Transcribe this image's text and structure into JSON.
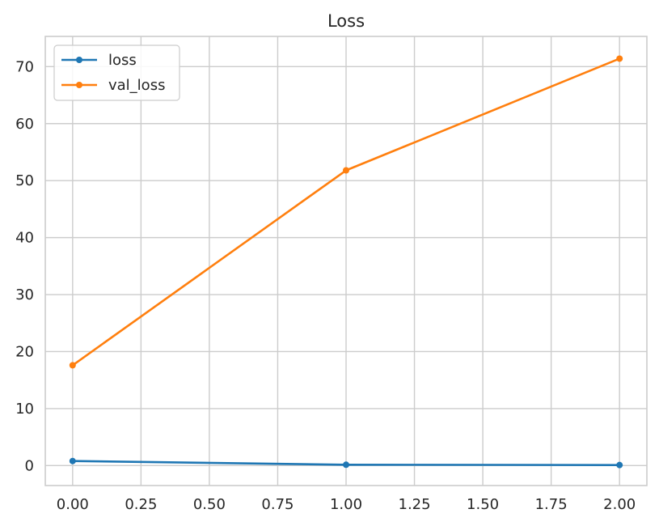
{
  "chart_data": {
    "type": "line",
    "title": "Loss",
    "xlabel": "",
    "ylabel": "",
    "x": [
      0,
      1,
      2
    ],
    "series": [
      {
        "name": "loss",
        "values": [
          0.8,
          0.15,
          0.1
        ],
        "color": "#1f77b4"
      },
      {
        "name": "val_loss",
        "values": [
          17.6,
          51.8,
          71.4
        ],
        "color": "#ff7f0e"
      }
    ],
    "xlim": [
      -0.1,
      2.1
    ],
    "ylim": [
      -3.5,
      75.3
    ],
    "xticks": [
      0.0,
      0.25,
      0.5,
      0.75,
      1.0,
      1.25,
      1.5,
      1.75,
      2.0
    ],
    "xtick_labels": [
      "0.00",
      "0.25",
      "0.50",
      "0.75",
      "1.00",
      "1.25",
      "1.50",
      "1.75",
      "2.00"
    ],
    "yticks": [
      0,
      10,
      20,
      30,
      40,
      50,
      60,
      70
    ],
    "ytick_labels": [
      "0",
      "10",
      "20",
      "30",
      "40",
      "50",
      "60",
      "70"
    ],
    "grid": true,
    "legend": "upper-left",
    "marker": "circle"
  }
}
